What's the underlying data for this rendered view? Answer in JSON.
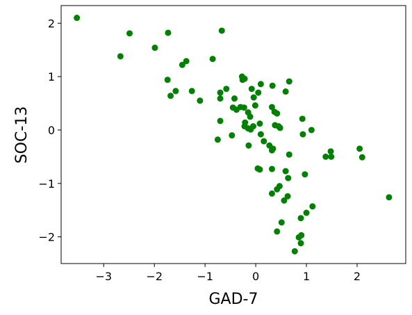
{
  "chart_data": {
    "type": "scatter",
    "x_label": "GAD-7",
    "y_label": "SOC-13",
    "color": "#008000",
    "xlim": [
      -3.84,
      2.96
    ],
    "ylim": [
      -2.5,
      2.33
    ],
    "xticks": [
      {
        "value": -3,
        "label": "−3"
      },
      {
        "value": -2,
        "label": "−2"
      },
      {
        "value": -1,
        "label": "−1"
      },
      0,
      1,
      2
    ],
    "yticks": [
      {
        "value": -2,
        "label": "−2"
      },
      {
        "value": -1,
        "label": "−1"
      },
      0,
      1,
      2
    ],
    "grid": false,
    "x": [
      -3.53,
      -2.67,
      -2.49,
      -1.99,
      -1.73,
      -0.67,
      -1.45,
      -1.37,
      -0.85,
      -1.74,
      -1.68,
      -1.58,
      -1.26,
      -1.1,
      -0.7,
      -0.7,
      -0.58,
      -0.45,
      -0.42,
      -0.38,
      -0.3,
      -0.27,
      -0.26,
      -0.22,
      -0.23,
      -0.08,
      -0.04,
      0.05,
      0.1,
      0.33,
      0.66,
      0.59,
      0.32,
      0.37,
      0.42,
      -0.01,
      -0.15,
      -0.11,
      -0.21,
      -0.22,
      -0.15,
      -0.1,
      -0.05,
      0.08,
      0.38,
      0.48,
      0.45,
      -0.7,
      -0.47,
      -0.75,
      -0.14,
      0.1,
      0.16,
      0.27,
      0.32,
      0.34,
      0.66,
      0.92,
      0.93,
      1.1,
      0.04,
      0.08,
      0.32,
      0.59,
      0.97,
      1.49,
      1.38,
      1.48,
      2.05,
      2.1,
      0.47,
      0.42,
      0.64,
      0.32,
      0.63,
      0.56,
      2.63,
      1.12,
      1.0,
      0.51,
      0.89,
      0.42,
      0.9,
      0.85,
      0.89,
      0.77
    ],
    "values": [
      2.1,
      1.38,
      1.81,
      1.54,
      1.82,
      1.86,
      1.22,
      1.29,
      1.33,
      0.94,
      0.64,
      0.73,
      0.73,
      0.55,
      0.7,
      0.59,
      0.77,
      0.42,
      0.59,
      0.38,
      0.43,
      1.0,
      0.94,
      0.96,
      0.42,
      0.77,
      0.61,
      0.7,
      0.86,
      0.83,
      0.91,
      0.72,
      0.43,
      0.34,
      0.31,
      0.46,
      0.33,
      0.25,
      0.14,
      0.07,
      0.03,
      0.01,
      0.07,
      0.12,
      0.09,
      0.04,
      0.07,
      0.17,
      -0.1,
      -0.18,
      -0.29,
      -0.08,
      -0.21,
      -0.29,
      -0.38,
      -0.35,
      -0.46,
      0.21,
      -0.08,
      0.0,
      -0.72,
      -0.74,
      -0.73,
      -0.77,
      -0.83,
      -0.5,
      -0.5,
      -0.4,
      -0.35,
      -0.51,
      -1.05,
      -1.11,
      -0.9,
      -1.19,
      -1.24,
      -1.32,
      -1.26,
      -1.43,
      -1.55,
      -1.73,
      -1.65,
      -1.9,
      -1.97,
      -2.01,
      -2.12,
      -2.27
    ]
  }
}
